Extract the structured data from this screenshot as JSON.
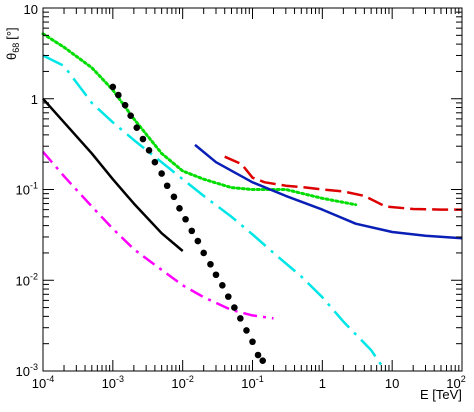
{
  "chart_data": {
    "type": "line",
    "xlabel": "E [TeV]",
    "ylabel": "θ68 [°]",
    "ylabel_main": "θ",
    "ylabel_sub": "68",
    "ylabel_unit": "[°]",
    "x_scale": "log",
    "y_scale": "log",
    "xlim": [
      0.0001,
      100
    ],
    "ylim": [
      0.001,
      10
    ],
    "grid": false,
    "x_tick_labels": [
      {
        "value": 0.0001,
        "base": "10",
        "exp": "-4"
      },
      {
        "value": 0.001,
        "base": "10",
        "exp": "-3"
      },
      {
        "value": 0.01,
        "base": "10",
        "exp": "-2"
      },
      {
        "value": 0.1,
        "base": "10",
        "exp": "-1"
      },
      {
        "value": 1,
        "base": "1",
        "exp": ""
      },
      {
        "value": 10,
        "base": "10",
        "exp": ""
      },
      {
        "value": 100,
        "base": "10",
        "exp": "2"
      }
    ],
    "y_tick_labels": [
      {
        "value": 0.001,
        "base": "10",
        "exp": "-3"
      },
      {
        "value": 0.01,
        "base": "10",
        "exp": "-2"
      },
      {
        "value": 0.1,
        "base": "10",
        "exp": "-1"
      },
      {
        "value": 1,
        "base": "1",
        "exp": ""
      },
      {
        "value": 10,
        "base": "10",
        "exp": ""
      }
    ],
    "series": [
      {
        "style": "solid",
        "color": "#000000",
        "x": [
          0.0001,
          0.0002,
          0.0005,
          0.001,
          0.002,
          0.005,
          0.01
        ],
        "y": [
          1.0,
          0.55,
          0.25,
          0.13,
          0.07,
          0.033,
          0.021
        ]
      },
      {
        "style": "dashdot",
        "color": "#ff00ff",
        "x": [
          0.0001,
          0.0002,
          0.0005,
          0.001,
          0.002,
          0.005,
          0.01,
          0.02,
          0.05,
          0.1,
          0.2
        ],
        "y": [
          0.26,
          0.14,
          0.065,
          0.037,
          0.022,
          0.013,
          0.0088,
          0.0065,
          0.0047,
          0.0041,
          0.0038
        ]
      },
      {
        "style": "dotted",
        "color": "#00dd00",
        "x": [
          0.0001,
          0.0002,
          0.0005,
          0.001,
          0.002,
          0.005,
          0.01,
          0.02,
          0.05,
          0.1,
          0.3,
          1,
          3
        ],
        "y": [
          5.2,
          3.7,
          2.2,
          1.25,
          0.6,
          0.25,
          0.16,
          0.13,
          0.105,
          0.1,
          0.1,
          0.08,
          0.068
        ]
      },
      {
        "style": "longdashdot",
        "color": "#00e6e6",
        "x": [
          0.0001,
          0.0002,
          0.0005,
          0.001,
          0.002,
          0.005,
          0.01,
          0.02,
          0.05,
          0.1,
          0.2,
          0.5,
          1,
          2,
          5,
          8
        ],
        "y": [
          3.0,
          2.3,
          0.9,
          0.55,
          0.35,
          0.2,
          0.13,
          0.085,
          0.05,
          0.032,
          0.02,
          0.011,
          0.0065,
          0.0035,
          0.0017,
          0.001
        ]
      },
      {
        "style": "markers",
        "color": "#000000",
        "x": [
          0.001,
          0.0012,
          0.0015,
          0.0018,
          0.0022,
          0.0027,
          0.0033,
          0.004,
          0.005,
          0.006,
          0.0075,
          0.009,
          0.011,
          0.0135,
          0.0165,
          0.02,
          0.025,
          0.03,
          0.037,
          0.045,
          0.055,
          0.067,
          0.082,
          0.1,
          0.12,
          0.14
        ],
        "y": [
          1.35,
          1.1,
          0.85,
          0.65,
          0.48,
          0.36,
          0.27,
          0.2,
          0.15,
          0.11,
          0.083,
          0.062,
          0.047,
          0.035,
          0.027,
          0.02,
          0.015,
          0.0115,
          0.0088,
          0.0066,
          0.005,
          0.0038,
          0.0028,
          0.0021,
          0.0015,
          0.0013
        ]
      },
      {
        "style": "solid",
        "color": "#0a1fb5",
        "x": [
          0.015,
          0.03,
          0.1,
          0.3,
          1,
          3,
          10,
          30,
          100
        ],
        "y": [
          0.31,
          0.2,
          0.12,
          0.085,
          0.06,
          0.042,
          0.034,
          0.031,
          0.029
        ]
      },
      {
        "style": "longdash",
        "color": "#dd0000",
        "x": [
          0.04,
          0.07,
          0.1,
          0.15,
          0.3,
          0.6,
          1,
          2,
          4,
          8,
          20,
          50,
          100
        ],
        "y": [
          0.23,
          0.19,
          0.135,
          0.12,
          0.11,
          0.105,
          0.1,
          0.095,
          0.085,
          0.065,
          0.061,
          0.06,
          0.06
        ]
      }
    ]
  }
}
